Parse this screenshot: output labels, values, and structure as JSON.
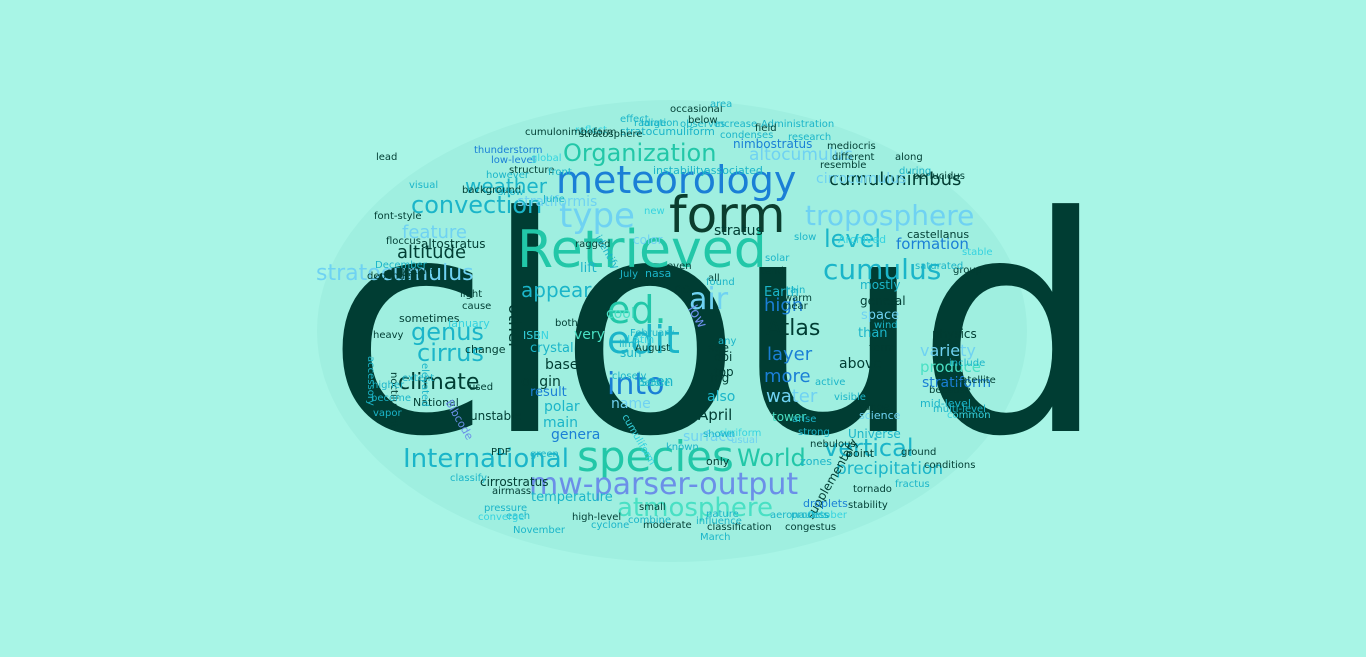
{
  "colors": {
    "background": "#a8f5e6",
    "ellipse": "#9fefe0",
    "palette": {
      "dark": "#003d33",
      "dark2": "#0b3d2e",
      "green": "#22c7a8",
      "teal": "#1bb5c9",
      "blue": "#1a7fd6",
      "lightblue": "#6fd2f2",
      "periwinkle": "#6b8fe8",
      "mint": "#49e0c4",
      "aqua": "#35d3e0"
    }
  },
  "words": [
    {
      "text": "cloud",
      "c": "dark",
      "r": 0
    },
    {
      "text": "Retrieved",
      "c": "green",
      "r": 0
    },
    {
      "text": "form",
      "c": "dark2",
      "r": 0
    },
    {
      "text": "meteorology",
      "c": "blue",
      "r": 0
    },
    {
      "text": "species",
      "c": "green",
      "r": 0
    },
    {
      "text": "mw-parser-output",
      "c": "periwinkle",
      "r": 0
    },
    {
      "text": "type",
      "c": "lightblue",
      "r": 0
    },
    {
      "text": "troposphere",
      "c": "lightblue",
      "r": 0
    },
    {
      "text": "cumulus",
      "c": "teal",
      "r": 0
    },
    {
      "text": "Organization",
      "c": "green",
      "r": 0
    },
    {
      "text": "convection",
      "c": "teal",
      "r": 0
    },
    {
      "text": "International",
      "c": "teal",
      "r": 0
    },
    {
      "text": "atmosphere",
      "c": "mint",
      "r": 0
    },
    {
      "text": "stratocumulus",
      "c": "lightblue",
      "r": 0
    },
    {
      "text": "edit",
      "c": "teal",
      "r": 0
    },
    {
      "text": "ed.",
      "c": "green",
      "r": 0
    },
    {
      "text": "into",
      "c": "blue",
      "r": 0
    },
    {
      "text": "air",
      "c": "lightblue",
      "r": 0
    },
    {
      "text": "cumulonimbus",
      "c": "dark",
      "r": 0
    },
    {
      "text": "altocumulus",
      "c": "lightblue",
      "r": 0
    },
    {
      "text": "level",
      "c": "teal",
      "r": 0
    },
    {
      "text": "weather",
      "c": "teal",
      "r": 0
    },
    {
      "text": "World",
      "c": "green",
      "r": 0
    },
    {
      "text": "vertical",
      "c": "teal",
      "r": 0
    },
    {
      "text": "climate",
      "c": "dark",
      "r": 0
    },
    {
      "text": "cirrus",
      "c": "teal",
      "r": 0
    },
    {
      "text": "genus",
      "c": "teal",
      "r": 0
    },
    {
      "text": "altitude",
      "c": "dark",
      "r": 0
    },
    {
      "text": "feature",
      "c": "lightblue",
      "r": 0
    },
    {
      "text": "appear",
      "c": "teal",
      "r": 0
    },
    {
      "text": "Atlas",
      "c": "dark",
      "r": 0
    },
    {
      "text": "layer",
      "c": "blue",
      "r": 0
    },
    {
      "text": "more",
      "c": "blue",
      "r": 0
    },
    {
      "text": "water",
      "c": "lightblue",
      "r": 0
    },
    {
      "text": "high",
      "c": "blue",
      "r": 0
    },
    {
      "text": "other",
      "c": "dark",
      "r": 90
    },
    {
      "text": "precipitation",
      "c": "teal",
      "r": 0
    },
    {
      "text": "formation",
      "c": "blue",
      "r": 0
    },
    {
      "text": "variety",
      "c": "lightblue",
      "r": 0
    },
    {
      "text": "produce",
      "c": "mint",
      "r": 0
    },
    {
      "text": "stratiform",
      "c": "blue",
      "r": 0
    },
    {
      "text": "cirrocumulus",
      "c": "lightblue",
      "r": 0
    },
    {
      "text": "stratiformis",
      "c": "lightblue",
      "r": 0
    },
    {
      "text": "stratocumuliform",
      "c": "teal",
      "r": 0
    },
    {
      "text": "nimbostratus",
      "c": "blue",
      "r": 0
    },
    {
      "text": "surface",
      "c": "lightblue",
      "r": 0
    },
    {
      "text": "low",
      "c": "periwinkle",
      "r": 60
    },
    {
      "text": "cool",
      "c": "mint",
      "r": 0
    },
    {
      "text": "very",
      "c": "mint",
      "r": 0
    },
    {
      "text": "stratus",
      "c": "dark",
      "r": 0
    },
    {
      "text": "also",
      "c": "teal",
      "r": 0
    },
    {
      "text": "April",
      "c": "dark",
      "r": 0
    },
    {
      "text": "name",
      "c": "lightblue",
      "r": 0
    },
    {
      "text": "seen",
      "c": "teal",
      "r": 0
    },
    {
      "text": "base",
      "c": "dark",
      "r": 0
    },
    {
      "text": "origin",
      "c": "dark",
      "r": 0
    },
    {
      "text": "result",
      "c": "blue",
      "r": 0
    },
    {
      "text": "polar",
      "c": "teal",
      "r": 0
    },
    {
      "text": "genera",
      "c": "blue",
      "r": 0
    },
    {
      "text": "main",
      "c": "teal",
      "r": 0
    },
    {
      "text": "temperature",
      "c": "teal",
      "r": 0
    },
    {
      "text": "cirrostratus",
      "c": "dark",
      "r": 0
    },
    {
      "text": "altostratus",
      "c": "dark",
      "r": 0
    },
    {
      "text": "Earth",
      "c": "teal",
      "r": 0
    },
    {
      "text": "physics",
      "c": "dark",
      "r": 0
    },
    {
      "text": "general",
      "c": "dark",
      "r": 0
    },
    {
      "text": "mostly",
      "c": "teal",
      "r": 0
    },
    {
      "text": "than",
      "c": "teal",
      "r": 0
    },
    {
      "text": "space",
      "c": "lightblue",
      "r": 0
    },
    {
      "text": "Archived",
      "c": "aqua",
      "r": 0
    },
    {
      "text": "castellanus",
      "c": "dark",
      "r": 0
    },
    {
      "text": "group",
      "c": "dark",
      "r": 0
    },
    {
      "text": "stable",
      "c": "aqua",
      "r": 0
    },
    {
      "text": "color",
      "c": "lightblue",
      "r": 0
    },
    {
      "text": "tower",
      "c": "mint",
      "r": 0
    },
    {
      "text": "Universe",
      "c": "teal",
      "r": 0
    },
    {
      "text": "science",
      "c": "lightblue",
      "r": 0
    },
    {
      "text": "range",
      "c": "dark",
      "r": 0
    },
    {
      "text": "mid-level",
      "c": "teal",
      "r": 0
    },
    {
      "text": "multi-level",
      "c": "teal",
      "r": 0
    },
    {
      "text": "common",
      "c": "aqua",
      "r": 0
    },
    {
      "text": "because",
      "c": "dark",
      "r": 0
    },
    {
      "text": "supplementary",
      "c": "dark",
      "r": -60
    },
    {
      "text": "droplets",
      "c": "blue",
      "r": 0
    },
    {
      "text": "October",
      "c": "aqua",
      "r": 0
    },
    {
      "text": "congestus",
      "c": "dark",
      "r": 0
    },
    {
      "text": "classification",
      "c": "dark",
      "r": 0
    },
    {
      "text": "moderate",
      "c": "dark",
      "r": 0
    },
    {
      "text": "cyclone",
      "c": "teal",
      "r": 0
    },
    {
      "text": "high-level",
      "c": "dark",
      "r": 0
    },
    {
      "text": "unstable",
      "c": "dark",
      "r": 0
    },
    {
      "text": "National",
      "c": "dark",
      "r": 0
    },
    {
      "text": "change",
      "c": "dark",
      "r": 0
    },
    {
      "text": "sometimes",
      "c": "dark",
      "r": 0
    },
    {
      "text": "January",
      "c": "aqua",
      "r": 0
    },
    {
      "text": "heavy",
      "c": "dark",
      "r": 0
    },
    {
      "text": "light",
      "c": "dark",
      "r": 0
    },
    {
      "text": "cause",
      "c": "dark",
      "r": 0
    },
    {
      "text": "noctilucent",
      "c": "dark",
      "r": 90
    },
    {
      "text": "accessory",
      "c": "teal",
      "r": 90
    },
    {
      "text": "thunderstorm",
      "c": "blue",
      "r": 0
    },
    {
      "text": "low-level",
      "c": "blue",
      "r": 0
    },
    {
      "text": "stratosphere",
      "c": "dark",
      "r": 0
    },
    {
      "text": "structure",
      "c": "dark",
      "r": 0
    },
    {
      "text": "global",
      "c": "aqua",
      "r": 0
    },
    {
      "text": "front",
      "c": "teal",
      "r": 0
    },
    {
      "text": "reflect",
      "c": "aqua",
      "r": 0
    },
    {
      "text": "radiation",
      "c": "teal",
      "r": 0
    },
    {
      "text": "observes",
      "c": "teal",
      "r": 0
    },
    {
      "text": "increase",
      "c": "teal",
      "r": 0
    },
    {
      "text": "condenses",
      "c": "teal",
      "r": 0
    },
    {
      "text": "instability",
      "c": "teal",
      "r": 0
    },
    {
      "text": "associated",
      "c": "teal",
      "r": 0
    },
    {
      "text": "effect",
      "c": "teal",
      "r": 0
    },
    {
      "text": "research",
      "c": "teal",
      "r": 0
    },
    {
      "text": "resemble",
      "c": "dark",
      "r": 0
    },
    {
      "text": "different",
      "c": "dark",
      "r": 0
    },
    {
      "text": "mediocris",
      "c": "dark",
      "r": 0
    },
    {
      "text": "background",
      "c": "dark",
      "r": 0
    },
    {
      "text": "floccus",
      "c": "dark",
      "r": 0
    },
    {
      "text": "system",
      "c": "dark",
      "r": 0
    },
    {
      "text": "ground",
      "c": "dark",
      "r": 0
    },
    {
      "text": "fractus",
      "c": "teal",
      "r": 0
    },
    {
      "text": "stability",
      "c": "dark",
      "r": 0
    },
    {
      "text": "conditions",
      "c": "dark",
      "r": 0
    },
    {
      "text": "tornado",
      "c": "dark",
      "r": 0
    },
    {
      "text": "crystal",
      "c": "teal",
      "r": 0
    },
    {
      "text": "ISBN",
      "c": "aqua",
      "r": 0
    },
    {
      "text": "Latin",
      "c": "aqua",
      "r": 0
    },
    {
      "text": "sun",
      "c": "teal",
      "r": 0
    },
    {
      "text": "see",
      "c": "dark",
      "r": 0
    },
    {
      "text": "doi",
      "c": "dark",
      "r": 0
    },
    {
      "text": "top",
      "c": "dark",
      "r": 0
    },
    {
      "text": "fog",
      "c": "dark",
      "r": 0
    },
    {
      "text": "any",
      "c": "teal",
      "r": 0
    },
    {
      "text": "no",
      "c": "dark",
      "r": 0
    },
    {
      "text": "over",
      "c": "dark",
      "r": 0
    },
    {
      "text": "nasa",
      "c": "teal",
      "r": 0
    },
    {
      "text": "lift",
      "c": "teal",
      "r": 0
    },
    {
      "text": "new",
      "c": "aqua",
      "r": 0
    },
    {
      "text": "only",
      "c": "dark",
      "r": 0
    },
    {
      "text": "tend",
      "c": "dark",
      "r": 0
    },
    {
      "text": "near",
      "c": "dark",
      "r": 0
    },
    {
      "text": "warm",
      "c": "dark",
      "r": 0
    },
    {
      "text": "rain",
      "c": "teal",
      "r": 0
    },
    {
      "text": "term",
      "c": "dark",
      "r": 0
    },
    {
      "text": "wind",
      "c": "teal",
      "r": 0
    },
    {
      "text": "above",
      "c": "dark",
      "r": 0
    },
    {
      "text": "Bibcode",
      "c": "periwinkle",
      "r": 60
    },
    {
      "text": "cumuliform",
      "c": "aqua",
      "r": 60
    },
    {
      "text": "used",
      "c": "dark",
      "r": 0
    },
    {
      "text": "PDF",
      "c": "dark",
      "r": 0
    },
    {
      "text": "vapor",
      "c": "teal",
      "r": 0
    },
    {
      "text": "become",
      "c": "teal",
      "r": 0
    },
    {
      "text": "higher",
      "c": "teal",
      "r": 0
    },
    {
      "text": "extent",
      "c": "teal",
      "r": 0
    },
    {
      "text": "each",
      "c": "teal",
      "r": 0
    },
    {
      "text": "pressure",
      "c": "teal",
      "r": 0
    },
    {
      "text": "airmass",
      "c": "dark",
      "r": 0
    },
    {
      "text": "converge",
      "c": "aqua",
      "r": 0
    },
    {
      "text": "classify",
      "c": "teal",
      "r": 0
    },
    {
      "text": "November",
      "c": "teal",
      "r": 0
    },
    {
      "text": "saturated",
      "c": "teal",
      "r": 0
    },
    {
      "text": "cirriform",
      "c": "aqua",
      "r": 0
    },
    {
      "text": "March",
      "c": "teal",
      "r": 0
    },
    {
      "text": "nebulous",
      "c": "dark",
      "r": 0
    },
    {
      "text": "point",
      "c": "dark",
      "r": 0
    },
    {
      "text": "zones",
      "c": "teal",
      "r": 0
    },
    {
      "text": "visible",
      "c": "teal",
      "r": 0
    },
    {
      "text": "active",
      "c": "teal",
      "r": 0
    },
    {
      "text": "satellite",
      "c": "dark",
      "r": 0
    },
    {
      "text": "include",
      "c": "teal",
      "r": 0
    },
    {
      "text": "during",
      "c": "teal",
      "r": 0
    },
    {
      "text": "along",
      "c": "dark",
      "r": 0
    },
    {
      "text": "perlucidus",
      "c": "dark",
      "r": 0
    },
    {
      "text": "ragged",
      "c": "dark",
      "r": 0
    },
    {
      "text": "December",
      "c": "teal",
      "r": 0
    },
    {
      "text": "February",
      "c": "teal",
      "r": 0
    },
    {
      "text": "July",
      "c": "teal",
      "r": 0
    },
    {
      "text": "June",
      "c": "teal",
      "r": 0
    },
    {
      "text": "August",
      "c": "dark",
      "r": 0
    },
    {
      "text": "limit",
      "c": "teal",
      "r": 0
    },
    {
      "text": "all",
      "c": "dark",
      "r": 0
    },
    {
      "text": "both",
      "c": "dark",
      "r": 0
    },
    {
      "text": "below",
      "c": "dark",
      "r": 0
    },
    {
      "text": "occasional",
      "c": "dark",
      "r": 0
    },
    {
      "text": "dependent",
      "c": "dark",
      "r": 0
    },
    {
      "text": "elevated",
      "c": "teal",
      "r": 90
    },
    {
      "text": "lead",
      "c": "dark",
      "r": 0
    },
    {
      "text": "cumulonimboform",
      "c": "dark",
      "r": 0
    },
    {
      "text": "Administration",
      "c": "teal",
      "r": 0
    },
    {
      "text": "identify",
      "c": "teal",
      "r": 60
    },
    {
      "text": "usual",
      "c": "lightblue",
      "r": 0
    },
    {
      "text": "shown",
      "c": "teal",
      "r": 0
    },
    {
      "text": "known",
      "c": "teal",
      "r": 0
    },
    {
      "text": "small",
      "c": "dark",
      "r": 0
    },
    {
      "text": "combine",
      "c": "teal",
      "r": 0
    },
    {
      "text": "process",
      "c": "teal",
      "r": 0
    },
    {
      "text": "influence",
      "c": "teal",
      "r": 0
    },
    {
      "text": "aeronautics",
      "c": "teal",
      "r": 0
    },
    {
      "text": "nature",
      "c": "teal",
      "r": 0
    },
    {
      "text": "found",
      "c": "teal",
      "r": 0
    },
    {
      "text": "even",
      "c": "dark",
      "r": 0
    },
    {
      "text": "slow",
      "c": "teal",
      "r": 0
    },
    {
      "text": "arise",
      "c": "teal",
      "r": 0
    },
    {
      "text": "strong",
      "c": "teal",
      "r": 0
    },
    {
      "text": "green",
      "c": "teal",
      "r": 0
    },
    {
      "text": "however",
      "c": "teal",
      "r": 0
    },
    {
      "text": "show",
      "c": "teal",
      "r": 0
    },
    {
      "text": "large",
      "c": "teal",
      "r": 0
    },
    {
      "text": "closely",
      "c": "teal",
      "r": 0
    },
    {
      "text": "visual",
      "c": "teal",
      "r": 0
    },
    {
      "text": "font-style",
      "c": "dark",
      "r": 0
    },
    {
      "text": "before",
      "c": "teal",
      "r": 0
    },
    {
      "text": "solar",
      "c": "teal",
      "r": 0
    },
    {
      "text": "field",
      "c": "dark",
      "r": 0
    },
    {
      "text": "area",
      "c": "teal",
      "r": 0
    },
    {
      "text": "gravity",
      "c": "teal",
      "r": 0
    },
    {
      "text": "transparent",
      "c": "teal",
      "r": 0
    }
  ]
}
